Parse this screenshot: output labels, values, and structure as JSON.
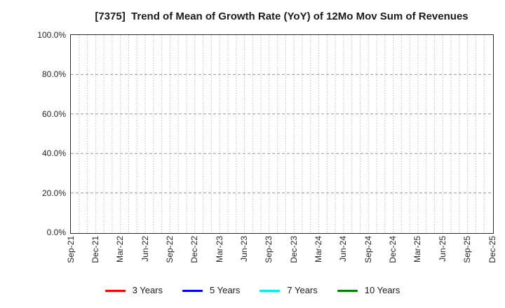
{
  "chart_data": {
    "type": "line",
    "title": "[7375]  Trend of Mean of Growth Rate (YoY) of 12Mo Mov Sum of Revenues",
    "xlabel": "",
    "ylabel": "",
    "x_tick_labels": [
      "Sep-21",
      "Dec-21",
      "Mar-22",
      "Jun-22",
      "Sep-22",
      "Dec-22",
      "Mar-23",
      "Jun-23",
      "Sep-23",
      "Dec-23",
      "Mar-24",
      "Jun-24",
      "Sep-24",
      "Dec-24",
      "Mar-25",
      "Jun-25",
      "Sep-25",
      "Dec-25"
    ],
    "x_minor_gridline_interval": "monthly",
    "x_months_span": 51,
    "y_tick_labels": [
      "0.0%",
      "20.0%",
      "40.0%",
      "60.0%",
      "80.0%",
      "100.0%"
    ],
    "y_tick_values": [
      0,
      20,
      40,
      60,
      80,
      100
    ],
    "y_gridline_values": [
      20,
      40,
      60,
      80
    ],
    "ylim": [
      0,
      100
    ],
    "grid": true,
    "legend_position": "bottom",
    "plot_empty": true,
    "series": [
      {
        "name": "3 Years",
        "color": "#ff0000",
        "values": []
      },
      {
        "name": "5 Years",
        "color": "#0000ff",
        "values": []
      },
      {
        "name": "7 Years",
        "color": "#00eeee",
        "values": []
      },
      {
        "name": "10 Years",
        "color": "#008000",
        "values": []
      }
    ],
    "colors": {
      "grid_vertical": "#a6a6a6",
      "grid_horizontal": "#999999",
      "axis_frame": "#2b2b2b",
      "text": "#262626"
    }
  }
}
